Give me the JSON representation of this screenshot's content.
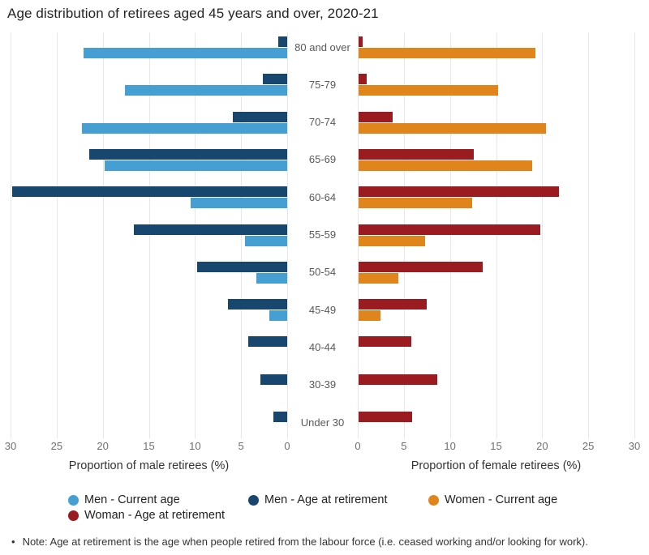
{
  "title": "Age distribution of retirees aged 45 years and over, 2020-21",
  "chart_data": {
    "type": "bar",
    "subtype": "population-pyramid",
    "categories": [
      "80 and over",
      "75-79",
      "70-74",
      "65-69",
      "60-64",
      "55-59",
      "50-54",
      "45-49",
      "40-44",
      "30-39",
      "Under 30"
    ],
    "series": [
      {
        "key": "men-current-age",
        "name": "Men - Current age",
        "side": "left",
        "row_position": "bottom",
        "color": "#459fd2",
        "values": [
          22.1,
          17.6,
          22.3,
          19.8,
          10.5,
          4.6,
          3.3,
          1.9,
          0,
          0,
          0
        ]
      },
      {
        "key": "men-age-at-retirement",
        "name": "Men - Age at retirement",
        "side": "left",
        "row_position": "top",
        "color": "#17476e",
        "values": [
          1.0,
          2.6,
          5.9,
          21.5,
          29.8,
          16.6,
          9.8,
          6.4,
          4.2,
          2.9,
          1.5
        ]
      },
      {
        "key": "women-current-age",
        "name": "Women - Current age",
        "side": "right",
        "row_position": "bottom",
        "color": "#e0851b",
        "values": [
          19.2,
          15.1,
          20.3,
          18.8,
          12.3,
          7.2,
          4.3,
          2.4,
          0,
          0,
          0
        ]
      },
      {
        "key": "woman-age-at-retirement",
        "name": "Woman - Age at retirement",
        "side": "right",
        "row_position": "top",
        "color": "#9a1b20",
        "values": [
          0.4,
          0.9,
          3.7,
          12.5,
          21.7,
          19.7,
          13.5,
          7.4,
          5.7,
          8.5,
          5.8
        ]
      }
    ],
    "xlabel_left": "Proportion of male retirees (%)",
    "xlabel_right": "Proportion of female retirees (%)",
    "ticks": [
      0,
      5,
      10,
      15,
      20,
      25,
      30
    ],
    "xlim": [
      0,
      30
    ],
    "grid": true,
    "legend_position": "bottom"
  },
  "note": {
    "bullet": "•",
    "text": "Note: Age at retirement is the age when people retired from the labour force (i.e. ceased working and/or looking for work)."
  }
}
